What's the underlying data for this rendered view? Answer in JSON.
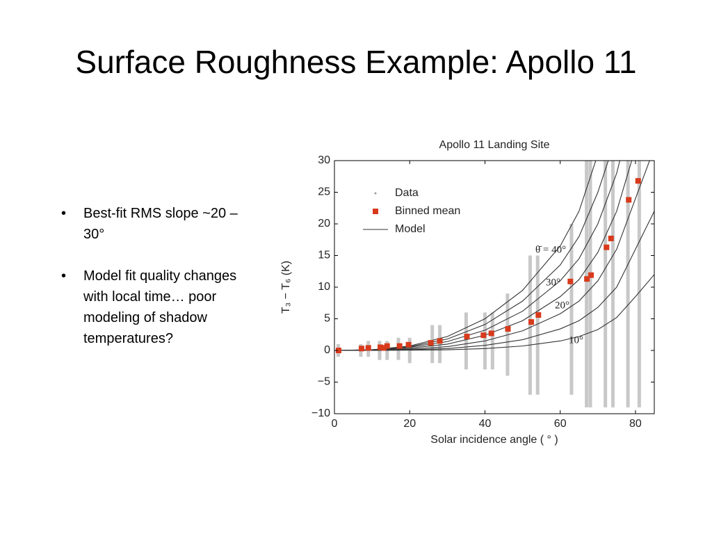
{
  "slide": {
    "title": "Surface Roughness Example: Apollo 11",
    "bullets": [
      "Best-fit RMS slope ~20 – 30°",
      "Model fit quality changes with local time… poor modeling of shadow temperatures?"
    ]
  },
  "chart_data": {
    "type": "scatter",
    "title": "Apollo 11 Landing Site",
    "xlabel": "Solar incidence angle ( ° )",
    "ylabel": "T₃ − T₆  (K)",
    "xlim": [
      0,
      85
    ],
    "ylim": [
      -10,
      30
    ],
    "xticks": [
      0,
      20,
      40,
      60,
      80
    ],
    "yticks": [
      {
        "value": -10,
        "label": "−10"
      },
      {
        "value": -5,
        "label": "−5"
      },
      0,
      5,
      10,
      15,
      20,
      25,
      30
    ],
    "legend": "upper left",
    "data": {
      "name": "Data",
      "color": "#9a9a9a",
      "x": [
        1,
        7,
        9,
        12,
        14,
        17,
        20,
        26,
        28,
        35,
        40,
        42,
        46,
        52,
        54,
        63,
        67,
        68,
        72,
        74,
        78,
        81
      ],
      "low": [
        -1,
        -1,
        -1,
        -1.5,
        -1.5,
        -1.5,
        -2,
        -2,
        -2,
        -3,
        -3,
        -3,
        -4,
        -7,
        -7,
        -7,
        -9,
        -9,
        -9,
        -9,
        -9,
        -9
      ],
      "high": [
        1,
        1,
        1.5,
        1.5,
        1.5,
        2,
        2,
        4,
        4,
        6,
        6,
        6,
        9,
        15,
        15,
        20,
        30,
        30,
        30,
        30,
        30,
        30
      ]
    },
    "binned": {
      "name": "Binned mean",
      "color": "#d83a1c",
      "x": [
        1.1,
        7.2,
        9,
        12.2,
        13.1,
        14,
        17.3,
        19.7,
        25.6,
        28,
        35.2,
        39.6,
        41.7,
        46.1,
        52.3,
        54.2,
        62.7,
        67.1,
        68.2,
        72.3,
        73.5,
        78.2,
        80.7
      ],
      "values": [
        0,
        0.3,
        0.4,
        0.5,
        0.4,
        0.7,
        0.7,
        0.9,
        1.2,
        1.5,
        2.2,
        2.4,
        2.7,
        3.4,
        4.5,
        5.6,
        10.9,
        11.3,
        11.9,
        16.3,
        17.7,
        23.8,
        26.8
      ]
    },
    "model": {
      "name": "Model",
      "color": "#333333",
      "x": [
        0,
        10,
        20,
        30,
        40,
        50,
        60,
        65,
        70,
        75,
        80,
        85
      ],
      "curves": [
        [
          0,
          0.1,
          0.7,
          2.2,
          5,
          9.5,
          16.5,
          22,
          31,
          42,
          null,
          null
        ],
        [
          0,
          0.1,
          0.6,
          1.8,
          4.1,
          7.8,
          13.5,
          18,
          25,
          34,
          null,
          null
        ],
        [
          0,
          0.1,
          0.5,
          1.4,
          3.2,
          6.2,
          11,
          14.5,
          20,
          28,
          40,
          null
        ],
        [
          0,
          0.05,
          0.35,
          1,
          2.4,
          4.7,
          8.5,
          11.2,
          15.5,
          22,
          32,
          null
        ],
        [
          0,
          0.03,
          0.2,
          0.6,
          1.5,
          3.1,
          5.8,
          7.8,
          11,
          16,
          24,
          32
        ],
        [
          0,
          0.02,
          0.1,
          0.3,
          0.8,
          1.7,
          3.4,
          4.7,
          6.8,
          10,
          16,
          22
        ],
        [
          0,
          0,
          0.04,
          0.1,
          0.3,
          0.7,
          1.5,
          2.2,
          3.3,
          5.2,
          8.5,
          12
        ]
      ]
    },
    "annotations": [
      "θ̄ = 40°",
      "30°",
      "20°",
      "10°"
    ]
  }
}
